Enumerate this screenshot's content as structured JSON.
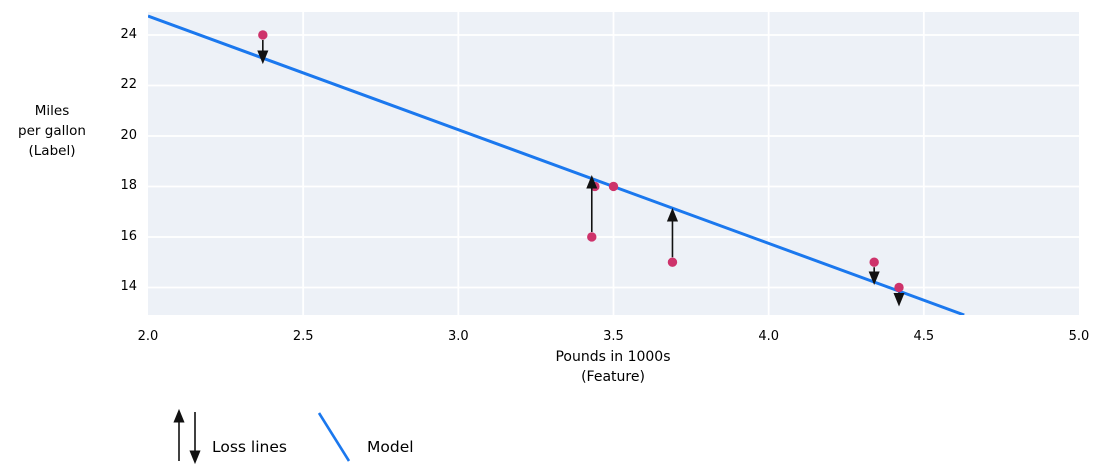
{
  "chart_data": {
    "type": "scatter",
    "title": "",
    "xlabel": "Pounds in 1000s\n(Feature)",
    "ylabel": "Miles\nper gallon\n(Label)",
    "xlim": [
      2.0,
      5.0
    ],
    "ylim": [
      12.91,
      24.91
    ],
    "grid": true,
    "x_ticks": [
      2.0,
      2.5,
      3.0,
      3.5,
      4.0,
      4.5,
      5.0
    ],
    "x_tick_labels": [
      "2.0",
      "2.5",
      "3.0",
      "3.5",
      "4.0",
      "4.5",
      "5.0"
    ],
    "y_ticks": [
      14,
      16,
      18,
      20,
      22,
      24
    ],
    "y_tick_labels": [
      "14",
      "16",
      "18",
      "20",
      "22",
      "24"
    ],
    "points": [
      {
        "x": 2.37,
        "y": 24
      },
      {
        "x": 3.44,
        "y": 18
      },
      {
        "x": 3.5,
        "y": 18
      },
      {
        "x": 3.43,
        "y": 16
      },
      {
        "x": 3.69,
        "y": 15
      },
      {
        "x": 4.34,
        "y": 15
      },
      {
        "x": 4.42,
        "y": 14
      }
    ],
    "model_line": {
      "x1": 2.0,
      "y1": 24.75,
      "x2": 4.63,
      "y2": 12.91
    },
    "loss_lines": [
      {
        "x": 2.37,
        "from": 24,
        "to": 23.05,
        "direction": "down"
      },
      {
        "x": 3.43,
        "from": 16,
        "to": 18.25,
        "direction": "up"
      },
      {
        "x": 3.69,
        "from": 15,
        "to": 16.95,
        "direction": "up"
      },
      {
        "x": 4.34,
        "from": 15,
        "to": 14.3,
        "direction": "down"
      },
      {
        "x": 4.42,
        "from": 14,
        "to": 13.45,
        "direction": "down"
      }
    ],
    "legend": {
      "loss_label": "Loss lines",
      "model_label": "Model"
    },
    "colors": {
      "point": "#ce336b",
      "model_line": "#1b78ee",
      "plot_bg": "#edf1f7",
      "grid": "#ffffff",
      "loss_arrow": "#111111",
      "text": "#000000"
    }
  }
}
